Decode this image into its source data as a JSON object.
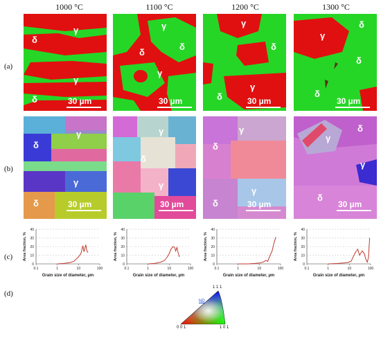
{
  "temperatures": [
    "1000 °C",
    "1100 °C",
    "1200 °C",
    "1300 °C"
  ],
  "row_labels": [
    "(a)",
    "(b)",
    "(c)",
    "(d)"
  ],
  "phase_labels": {
    "gamma": "γ",
    "delta": "δ"
  },
  "scale_bar": "30 µm",
  "colors": {
    "gamma_phase": "#e01010",
    "delta_phase": "#26d626",
    "curve": "#c0392b"
  },
  "chart_data": [
    {
      "type": "line",
      "title": "",
      "xlabel": "Grain size of diameter, µm",
      "ylabel": "Area fraction, %",
      "xscale": "log",
      "xlim": [
        0.1,
        100
      ],
      "ylim": [
        0,
        40
      ],
      "xticks": [
        "0.1",
        "1",
        "10",
        "100"
      ],
      "yticks": [
        "0",
        "10",
        "20",
        "30",
        "40"
      ],
      "grid": "horizontal dashed",
      "x": [
        1,
        2,
        4,
        6,
        8,
        10,
        13,
        16,
        18,
        20,
        22,
        25,
        28
      ],
      "y": [
        0,
        0.5,
        1.5,
        3,
        6,
        8,
        12,
        21,
        14,
        18,
        22,
        15,
        13
      ]
    },
    {
      "type": "line",
      "title": "",
      "xlabel": "Grain size of diameter, µm",
      "ylabel": "Area fraction, %",
      "xscale": "log",
      "xlim": [
        0.1,
        100
      ],
      "ylim": [
        0,
        40
      ],
      "xticks": [
        "0.1",
        "1",
        "10",
        "100"
      ],
      "yticks": [
        "0",
        "10",
        "20",
        "30",
        "40"
      ],
      "grid": "horizontal dashed",
      "x": [
        1,
        2,
        4,
        6,
        8,
        10,
        12,
        15,
        18,
        20,
        23,
        26,
        30
      ],
      "y": [
        0,
        0.5,
        2,
        4,
        8,
        12,
        17,
        20,
        19,
        15,
        19,
        13,
        8
      ]
    },
    {
      "type": "line",
      "title": "",
      "xlabel": "Grain size of diameter, µm",
      "ylabel": "Area fraction, %",
      "xscale": "log",
      "xlim": [
        0.1,
        100
      ],
      "ylim": [
        0,
        40
      ],
      "xticks": [
        "0.1",
        "1",
        "10",
        "100"
      ],
      "yticks": [
        "0",
        "10",
        "20",
        "30",
        "40"
      ],
      "grid": "horizontal dashed",
      "x": [
        1,
        3,
        6,
        10,
        15,
        20,
        25,
        30,
        40,
        50,
        60
      ],
      "y": [
        0,
        0,
        0.5,
        1,
        2,
        4,
        3,
        8,
        15,
        25,
        31
      ]
    },
    {
      "type": "line",
      "title": "",
      "xlabel": "Grain size of diameter, µm",
      "ylabel": "Area fraction, %",
      "xscale": "log",
      "xlim": [
        0.1,
        100
      ],
      "ylim": [
        0,
        40
      ],
      "xticks": [
        "0.1",
        "1",
        "10",
        "100"
      ],
      "yticks": [
        "0",
        "10",
        "20",
        "30",
        "40"
      ],
      "grid": "horizontal dashed",
      "x": [
        1,
        2,
        4,
        8,
        12,
        15,
        20,
        25,
        30,
        40,
        50,
        60,
        70,
        80,
        90
      ],
      "y": [
        0,
        0.3,
        0.8,
        1.5,
        3,
        8,
        14,
        17,
        10,
        15,
        12,
        5,
        2,
        8,
        30
      ]
    }
  ],
  "ipf_legend": {
    "axis_label": "ND",
    "corner_top": "1 1 1",
    "corner_left": "0 0 1",
    "corner_right": "1 0 1"
  }
}
